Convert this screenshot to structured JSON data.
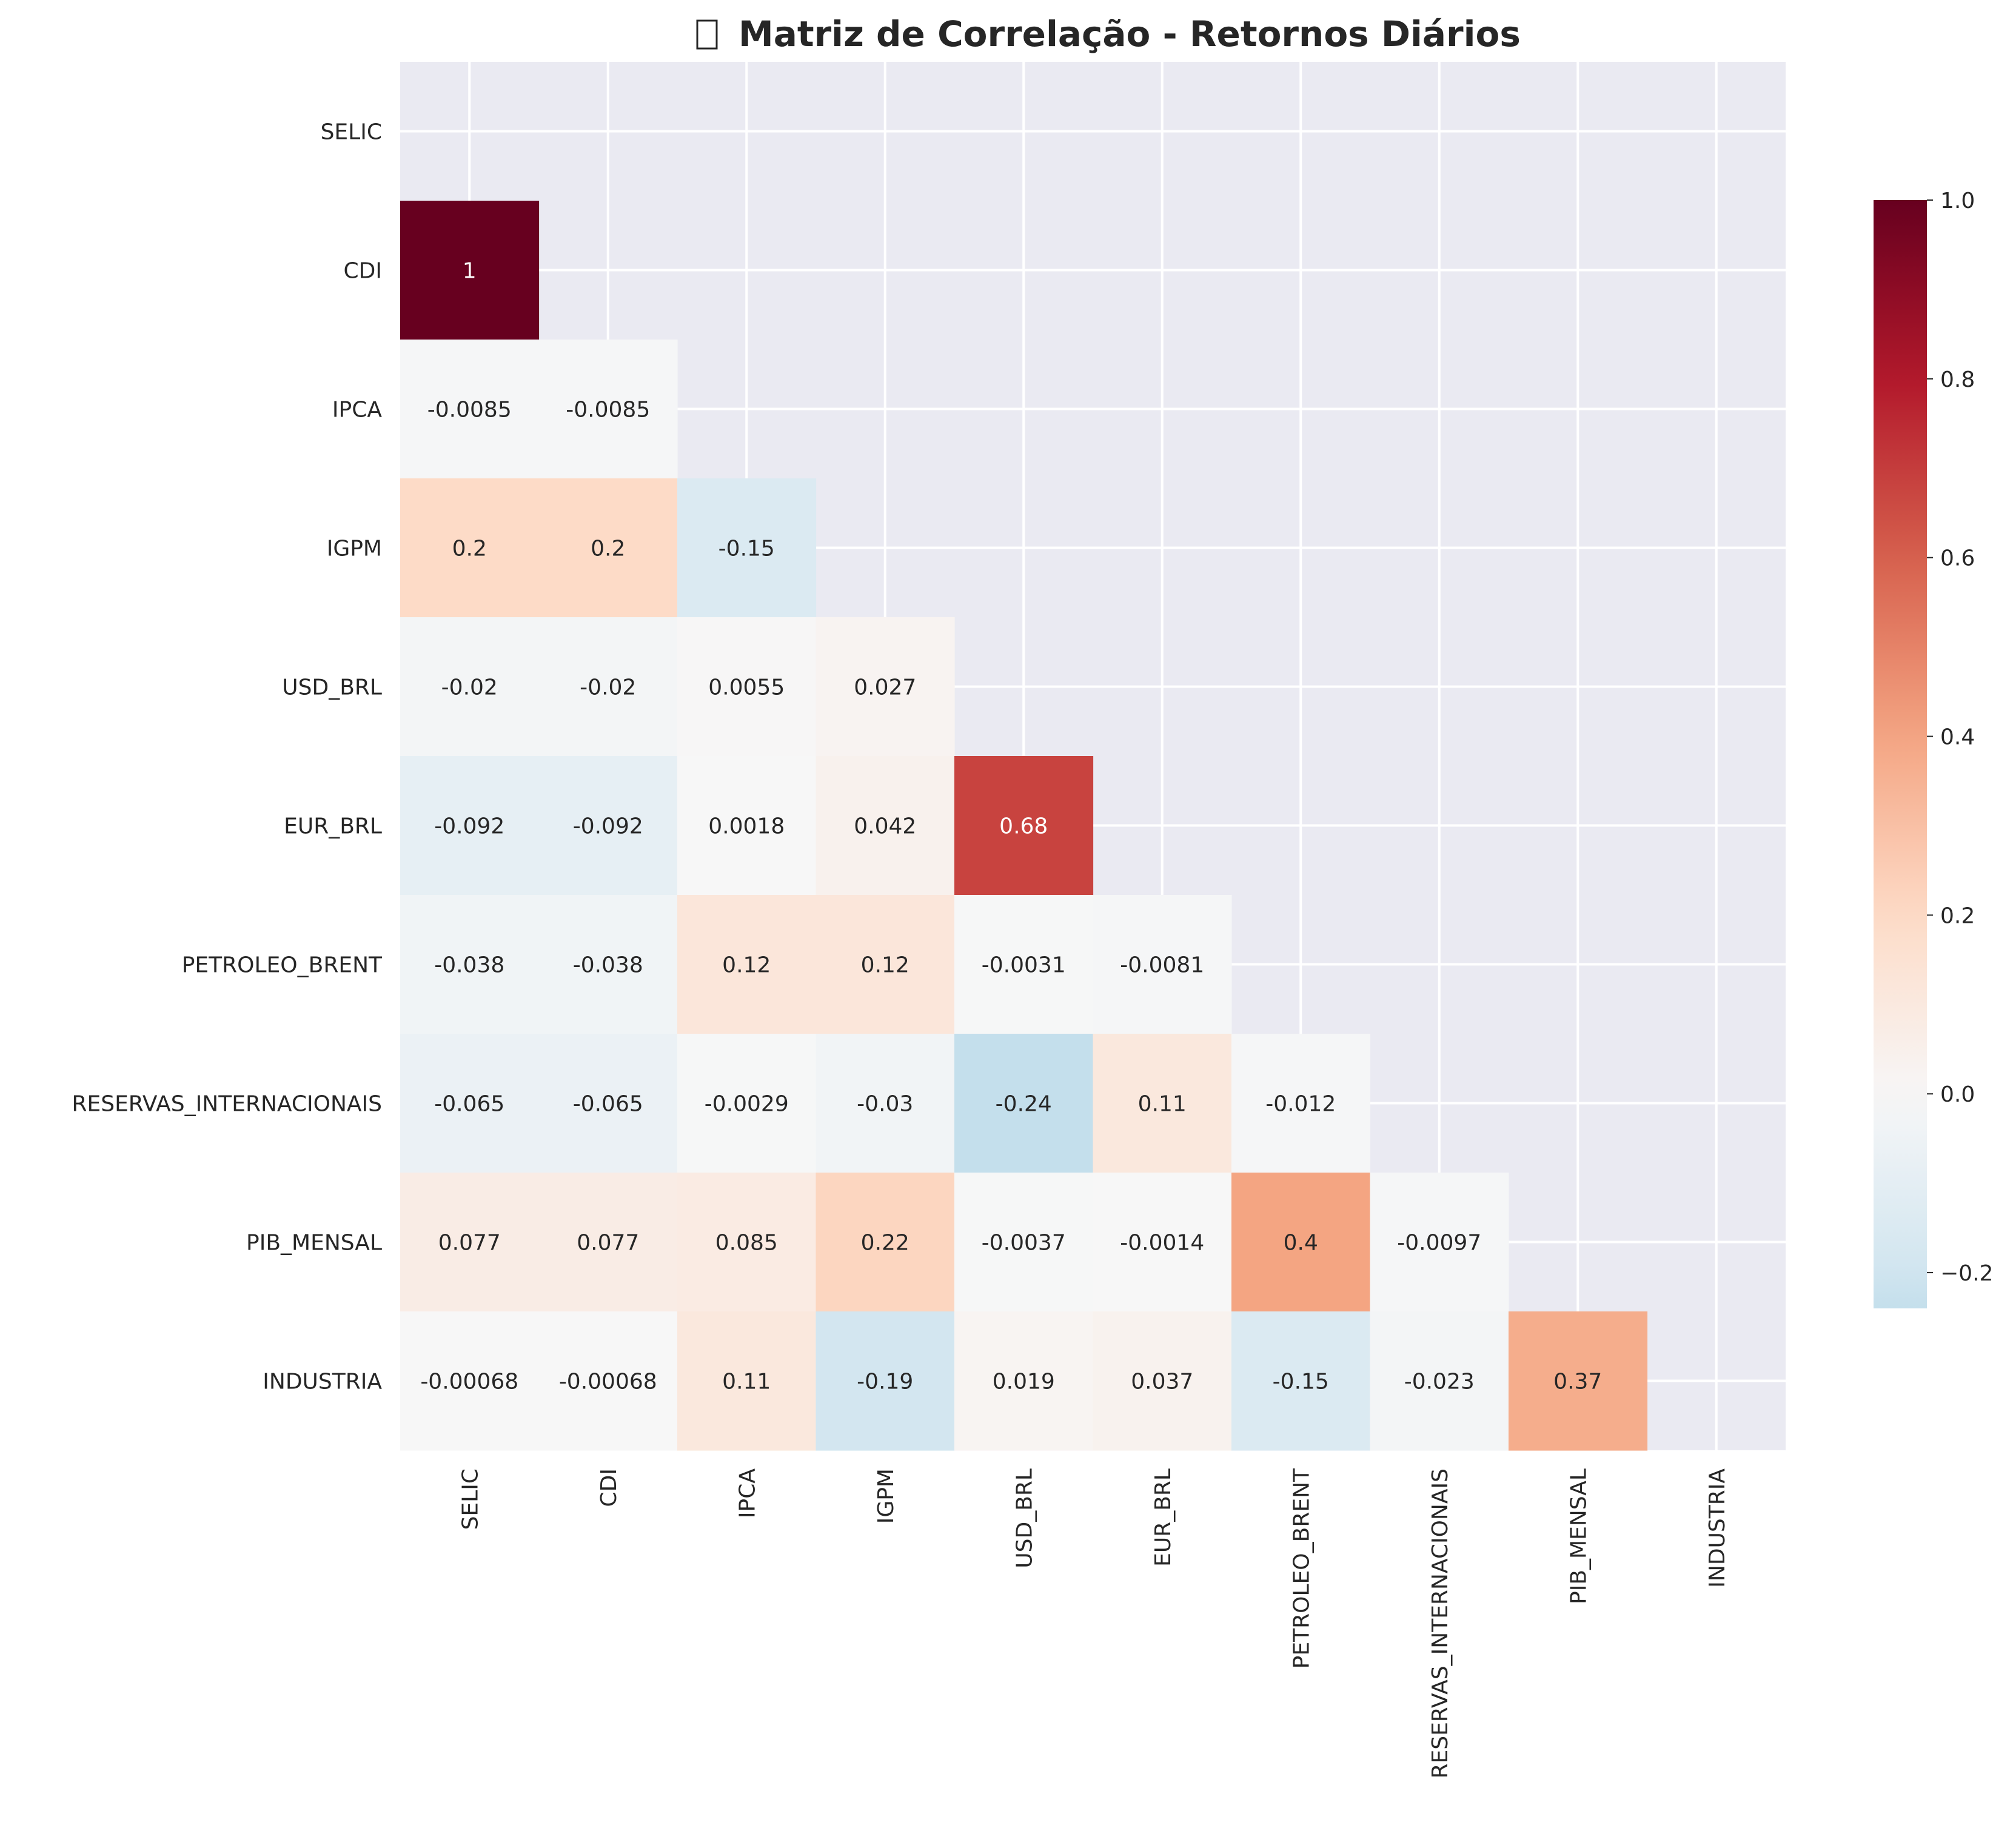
{
  "chart_data": {
    "type": "heatmap",
    "title": "Matriz de Correlação - Retornos Diários",
    "title_icon": "chart-emoji-missing-glyph",
    "mask": "upper-triangle-including-diagonal",
    "rows": [
      "SELIC",
      "CDI",
      "IPCA",
      "IGPM",
      "USD_BRL",
      "EUR_BRL",
      "PETROLEO_BRENT",
      "RESERVAS_INTERNACIONAIS",
      "PIB_MENSAL",
      "INDUSTRIA"
    ],
    "columns": [
      "SELIC",
      "CDI",
      "IPCA",
      "IGPM",
      "USD_BRL",
      "EUR_BRL",
      "PETROLEO_BRENT",
      "RESERVAS_INTERNACIONAIS",
      "PIB_MENSAL",
      "INDUSTRIA"
    ],
    "cells": [
      {
        "row": 1,
        "col": 0,
        "value": 1,
        "label": "1"
      },
      {
        "row": 2,
        "col": 0,
        "value": -0.0085,
        "label": "-0.0085"
      },
      {
        "row": 2,
        "col": 1,
        "value": -0.0085,
        "label": "-0.0085"
      },
      {
        "row": 3,
        "col": 0,
        "value": 0.2,
        "label": "0.2"
      },
      {
        "row": 3,
        "col": 1,
        "value": 0.2,
        "label": "0.2"
      },
      {
        "row": 3,
        "col": 2,
        "value": -0.15,
        "label": "-0.15"
      },
      {
        "row": 4,
        "col": 0,
        "value": -0.02,
        "label": "-0.02"
      },
      {
        "row": 4,
        "col": 1,
        "value": -0.02,
        "label": "-0.02"
      },
      {
        "row": 4,
        "col": 2,
        "value": 0.0055,
        "label": "0.0055"
      },
      {
        "row": 4,
        "col": 3,
        "value": 0.027,
        "label": "0.027"
      },
      {
        "row": 5,
        "col": 0,
        "value": -0.092,
        "label": "-0.092"
      },
      {
        "row": 5,
        "col": 1,
        "value": -0.092,
        "label": "-0.092"
      },
      {
        "row": 5,
        "col": 2,
        "value": 0.0018,
        "label": "0.0018"
      },
      {
        "row": 5,
        "col": 3,
        "value": 0.042,
        "label": "0.042"
      },
      {
        "row": 5,
        "col": 4,
        "value": 0.68,
        "label": "0.68"
      },
      {
        "row": 6,
        "col": 0,
        "value": -0.038,
        "label": "-0.038"
      },
      {
        "row": 6,
        "col": 1,
        "value": -0.038,
        "label": "-0.038"
      },
      {
        "row": 6,
        "col": 2,
        "value": 0.12,
        "label": "0.12"
      },
      {
        "row": 6,
        "col": 3,
        "value": 0.12,
        "label": "0.12"
      },
      {
        "row": 6,
        "col": 4,
        "value": -0.0031,
        "label": "-0.0031"
      },
      {
        "row": 6,
        "col": 5,
        "value": -0.0081,
        "label": "-0.0081"
      },
      {
        "row": 7,
        "col": 0,
        "value": -0.065,
        "label": "-0.065"
      },
      {
        "row": 7,
        "col": 1,
        "value": -0.065,
        "label": "-0.065"
      },
      {
        "row": 7,
        "col": 2,
        "value": -0.0029,
        "label": "-0.0029"
      },
      {
        "row": 7,
        "col": 3,
        "value": -0.03,
        "label": "-0.03"
      },
      {
        "row": 7,
        "col": 4,
        "value": -0.24,
        "label": "-0.24"
      },
      {
        "row": 7,
        "col": 5,
        "value": 0.11,
        "label": "0.11"
      },
      {
        "row": 7,
        "col": 6,
        "value": -0.012,
        "label": "-0.012"
      },
      {
        "row": 8,
        "col": 0,
        "value": 0.077,
        "label": "0.077"
      },
      {
        "row": 8,
        "col": 1,
        "value": 0.077,
        "label": "0.077"
      },
      {
        "row": 8,
        "col": 2,
        "value": 0.085,
        "label": "0.085"
      },
      {
        "row": 8,
        "col": 3,
        "value": 0.22,
        "label": "0.22"
      },
      {
        "row": 8,
        "col": 4,
        "value": -0.0037,
        "label": "-0.0037"
      },
      {
        "row": 8,
        "col": 5,
        "value": -0.0014,
        "label": "-0.0014"
      },
      {
        "row": 8,
        "col": 6,
        "value": 0.4,
        "label": "0.4"
      },
      {
        "row": 8,
        "col": 7,
        "value": -0.0097,
        "label": "-0.0097"
      },
      {
        "row": 9,
        "col": 0,
        "value": -0.00068,
        "label": "-0.00068"
      },
      {
        "row": 9,
        "col": 1,
        "value": -0.00068,
        "label": "-0.00068"
      },
      {
        "row": 9,
        "col": 2,
        "value": 0.11,
        "label": "0.11"
      },
      {
        "row": 9,
        "col": 3,
        "value": -0.19,
        "label": "-0.19"
      },
      {
        "row": 9,
        "col": 4,
        "value": 0.019,
        "label": "0.019"
      },
      {
        "row": 9,
        "col": 5,
        "value": 0.037,
        "label": "0.037"
      },
      {
        "row": 9,
        "col": 6,
        "value": -0.15,
        "label": "-0.15"
      },
      {
        "row": 9,
        "col": 7,
        "value": -0.023,
        "label": "-0.023"
      },
      {
        "row": 9,
        "col": 8,
        "value": 0.37,
        "label": "0.37"
      }
    ],
    "colorbar": {
      "colormap": "RdBu_r",
      "center": 0,
      "vmin": -0.24,
      "vmax": 1.0,
      "ticks": [
        -0.2,
        0.0,
        0.2,
        0.4,
        0.6,
        0.8,
        1.0
      ],
      "tick_labels": [
        "−0.2",
        "0.0",
        "0.2",
        "0.4",
        "0.6",
        "0.8",
        "1.0"
      ],
      "placement": "right"
    },
    "background_color": "#eaeaf2",
    "grid_color": "#ffffff",
    "grid": true
  }
}
